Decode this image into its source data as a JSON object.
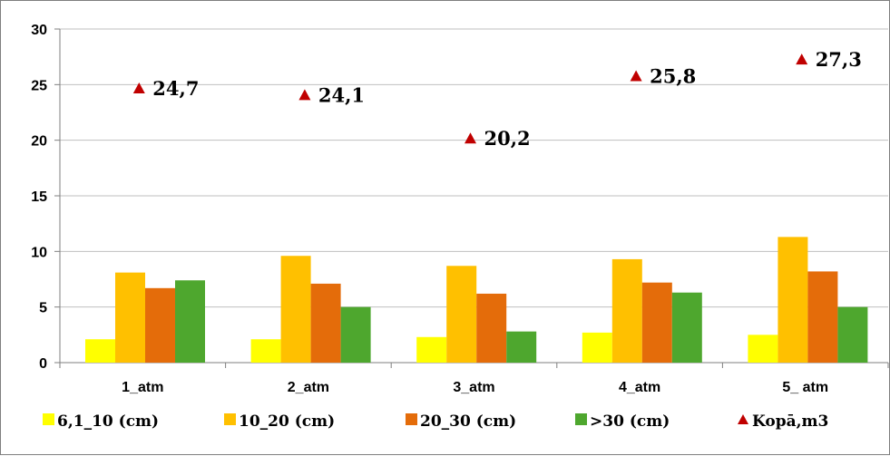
{
  "chart_data": {
    "type": "bar",
    "categories": [
      "1_atm",
      "2_atm",
      "3_atm",
      "4_atm",
      "5_ atm"
    ],
    "series": [
      {
        "name": "6,1_10 (cm)",
        "kind": "bar",
        "color": "#ffff00",
        "values": [
          2.1,
          2.1,
          2.3,
          2.7,
          2.5
        ]
      },
      {
        "name": "10_20 (cm)",
        "kind": "bar",
        "color": "#ffc000",
        "values": [
          8.1,
          9.6,
          8.7,
          9.3,
          11.3
        ]
      },
      {
        "name": "20_30 (cm)",
        "kind": "bar",
        "color": "#e46c0a",
        "values": [
          6.7,
          7.1,
          6.2,
          7.2,
          8.2
        ]
      },
      {
        "name": ">30 (cm)",
        "kind": "bar",
        "color": "#4ea72e",
        "values": [
          7.4,
          5.0,
          2.8,
          6.3,
          5.0
        ]
      },
      {
        "name": "Kopā,m3",
        "kind": "marker",
        "marker": "triangle",
        "color": "#c00000",
        "values": [
          24.7,
          24.1,
          20.2,
          25.8,
          27.3
        ],
        "labels": [
          "24,7",
          "24,1",
          "20,2",
          "25,8",
          "27,3"
        ]
      }
    ],
    "yticks": [
      "0",
      "5",
      "10",
      "15",
      "20",
      "25",
      "30"
    ],
    "ylim": [
      0,
      30
    ],
    "grid": true,
    "legend_position": "bottom",
    "title": "",
    "xlabel": "",
    "ylabel": ""
  }
}
